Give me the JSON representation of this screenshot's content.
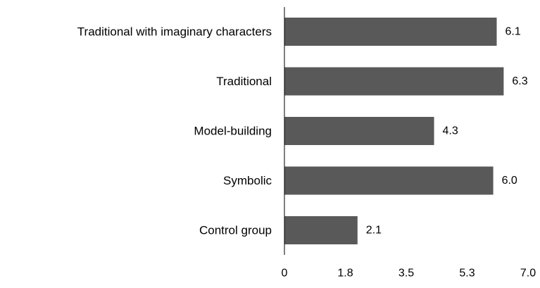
{
  "chart_data": {
    "type": "bar",
    "orientation": "horizontal",
    "title": "",
    "xlabel": "",
    "ylabel": "",
    "categories": [
      "Traditional with imaginary characters",
      "Traditional",
      "Model-building",
      "Symbolic",
      "Control group"
    ],
    "values": [
      6.1,
      6.3,
      4.3,
      6.0,
      2.1
    ],
    "value_labels": [
      "6.1",
      "6.3",
      "4.3",
      "6.0",
      "2.1"
    ],
    "xlim": [
      0,
      7.0
    ],
    "x_ticks": [
      0,
      1.75,
      3.5,
      5.25,
      7.0
    ],
    "x_tick_labels": [
      "0",
      "1.8",
      "3.5",
      "5.3",
      "7.0"
    ],
    "grid": false,
    "legend": "none",
    "colors": {
      "bar": "#595959",
      "axis": "#000000"
    }
  }
}
